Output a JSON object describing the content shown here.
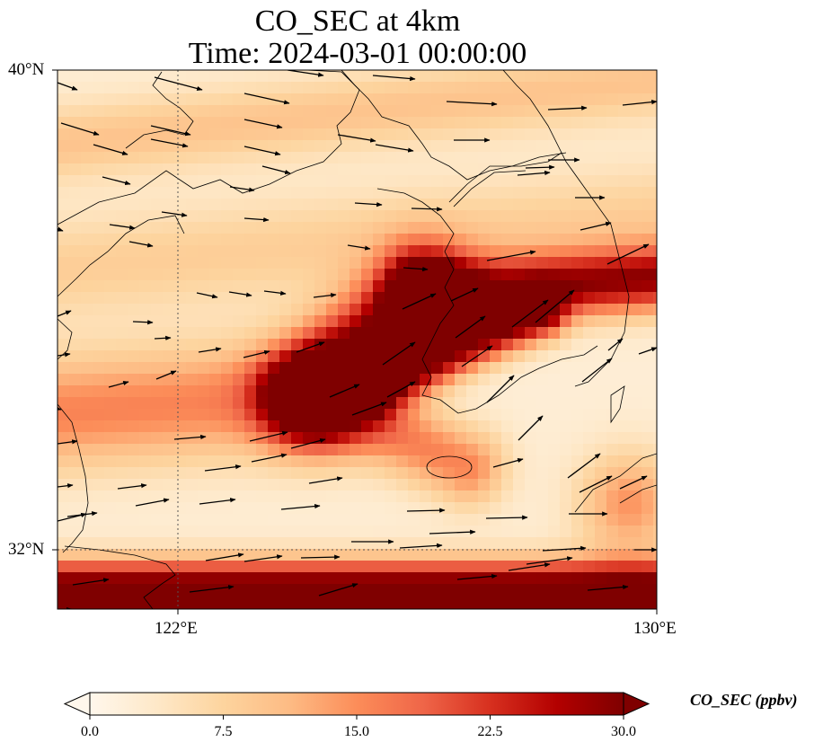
{
  "title": {
    "line1": "CO_SEC at 4km",
    "line2": "Time: 2024-03-01 00:00:00"
  },
  "axes": {
    "lat_ticks": [
      "40°N",
      "32°N"
    ],
    "lon_ticks": [
      "122°E",
      "130°E"
    ],
    "lon_range_deg": [
      120,
      130
    ],
    "lat_range_deg": [
      31,
      40
    ]
  },
  "colorbar": {
    "label": "CO_SEC (ppbv)",
    "ticks": [
      "0.0",
      "7.5",
      "15.0",
      "22.5",
      "30.0"
    ],
    "range": [
      0,
      30
    ],
    "colormap": "OrRd",
    "extend": "both",
    "colors": [
      "#fff7ec",
      "#fee8c8",
      "#fdd49e",
      "#fdbb84",
      "#fc8d59",
      "#ef6548",
      "#d7301f",
      "#b30000",
      "#7f0000"
    ]
  },
  "field_description": {
    "hotspots": [
      {
        "lon": 126.3,
        "lat": 35.5,
        "level": "high"
      },
      {
        "lon": 127.8,
        "lat": 36.8,
        "level": "high"
      },
      {
        "lon": 124.5,
        "lat": 31.2,
        "level": "high"
      }
    ]
  }
}
